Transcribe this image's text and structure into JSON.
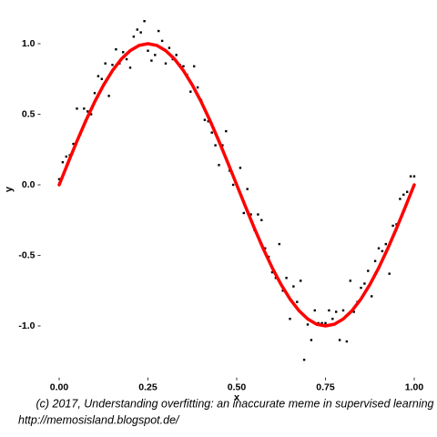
{
  "chart_data": {
    "type": "scatter",
    "xlabel": "x",
    "ylabel": "y",
    "caption": "(c) 2017, Understanding overfitting: an inaccurate meme in supervised learning",
    "source": "http://memosisland.blogspot.de/",
    "xlim": [
      -0.05,
      1.05
    ],
    "ylim": [
      -1.36,
      1.28
    ],
    "xticks": [
      {
        "value": 0,
        "label": "0.00"
      },
      {
        "value": 0.25,
        "label": "0.25"
      },
      {
        "value": 0.5,
        "label": "0.50"
      },
      {
        "value": 0.75,
        "label": "0.75"
      },
      {
        "value": 1,
        "label": "1.00"
      }
    ],
    "yticks": [
      {
        "value": 1,
        "label": "1.0"
      },
      0.5,
      {
        "value": 0,
        "label": "0.0"
      },
      -0.5,
      {
        "value": -1,
        "label": "-1.0"
      }
    ],
    "points": {
      "color": "#000000",
      "x": [
        0.0,
        0.01,
        0.02,
        0.03,
        0.04,
        0.05,
        0.06,
        0.07,
        0.08,
        0.09,
        0.1,
        0.11,
        0.12,
        0.13,
        0.14,
        0.15,
        0.16,
        0.17,
        0.18,
        0.19,
        0.2,
        0.21,
        0.22,
        0.23,
        0.24,
        0.25,
        0.26,
        0.27,
        0.28,
        0.29,
        0.3,
        0.31,
        0.32,
        0.33,
        0.34,
        0.35,
        0.36,
        0.37,
        0.38,
        0.39,
        0.4,
        0.41,
        0.42,
        0.43,
        0.44,
        0.45,
        0.46,
        0.47,
        0.48,
        0.49,
        0.5,
        0.51,
        0.52,
        0.53,
        0.54,
        0.55,
        0.56,
        0.57,
        0.58,
        0.59,
        0.6,
        0.61,
        0.62,
        0.63,
        0.64,
        0.65,
        0.66,
        0.67,
        0.68,
        0.69,
        0.7,
        0.71,
        0.72,
        0.73,
        0.74,
        0.75,
        0.76,
        0.77,
        0.78,
        0.79,
        0.8,
        0.81,
        0.82,
        0.83,
        0.84,
        0.85,
        0.86,
        0.87,
        0.88,
        0.89,
        0.9,
        0.91,
        0.92,
        0.93,
        0.94,
        0.95,
        0.96,
        0.97,
        0.98,
        0.99,
        1.0
      ],
      "y": [
        0.04,
        0.16,
        0.2,
        0.21,
        0.29,
        0.54,
        0.36,
        0.54,
        0.52,
        0.5,
        0.65,
        0.77,
        0.75,
        0.86,
        0.63,
        0.85,
        0.96,
        0.86,
        0.94,
        0.89,
        0.83,
        1.05,
        1.1,
        1.08,
        1.16,
        0.95,
        0.88,
        0.92,
        1.09,
        1.02,
        0.86,
        0.97,
        0.89,
        0.92,
        0.85,
        0.84,
        0.78,
        0.66,
        0.84,
        0.69,
        0.6,
        0.46,
        0.45,
        0.37,
        0.28,
        0.14,
        0.28,
        0.38,
        0.1,
        0.0,
        0.0,
        0.12,
        -0.2,
        -0.03,
        -0.21,
        -0.32,
        -0.21,
        -0.25,
        -0.45,
        -0.51,
        -0.62,
        -0.66,
        -0.42,
        -0.75,
        -0.66,
        -0.95,
        -0.72,
        -0.83,
        -0.68,
        -1.24,
        -0.99,
        -1.1,
        -0.89,
        -0.98,
        -0.98,
        -0.98,
        -0.89,
        -0.95,
        -0.9,
        -1.1,
        -0.89,
        -1.11,
        -0.68,
        -0.9,
        -0.83,
        -0.73,
        -0.7,
        -0.61,
        -0.79,
        -0.54,
        -0.45,
        -0.47,
        -0.42,
        -0.63,
        -0.29,
        -0.28,
        -0.1,
        -0.07,
        -0.05,
        0.06,
        0.06
      ]
    },
    "curve": {
      "color": "#ff0000",
      "x": [
        0,
        0.025,
        0.05,
        0.075,
        0.1,
        0.125,
        0.15,
        0.175,
        0.2,
        0.225,
        0.25,
        0.275,
        0.3,
        0.325,
        0.35,
        0.375,
        0.4,
        0.425,
        0.45,
        0.475,
        0.5,
        0.525,
        0.55,
        0.575,
        0.6,
        0.625,
        0.65,
        0.675,
        0.7,
        0.725,
        0.75,
        0.775,
        0.8,
        0.825,
        0.85,
        0.875,
        0.9,
        0.925,
        0.95,
        0.975,
        1
      ],
      "y": [
        0,
        0.156,
        0.309,
        0.454,
        0.588,
        0.707,
        0.809,
        0.891,
        0.951,
        0.988,
        1,
        0.988,
        0.951,
        0.891,
        0.809,
        0.707,
        0.588,
        0.454,
        0.309,
        0.156,
        0,
        -0.156,
        -0.309,
        -0.454,
        -0.588,
        -0.707,
        -0.809,
        -0.891,
        -0.951,
        -0.988,
        -1,
        -0.988,
        -0.951,
        -0.891,
        -0.809,
        -0.707,
        -0.588,
        -0.454,
        -0.309,
        -0.156,
        0
      ]
    }
  }
}
